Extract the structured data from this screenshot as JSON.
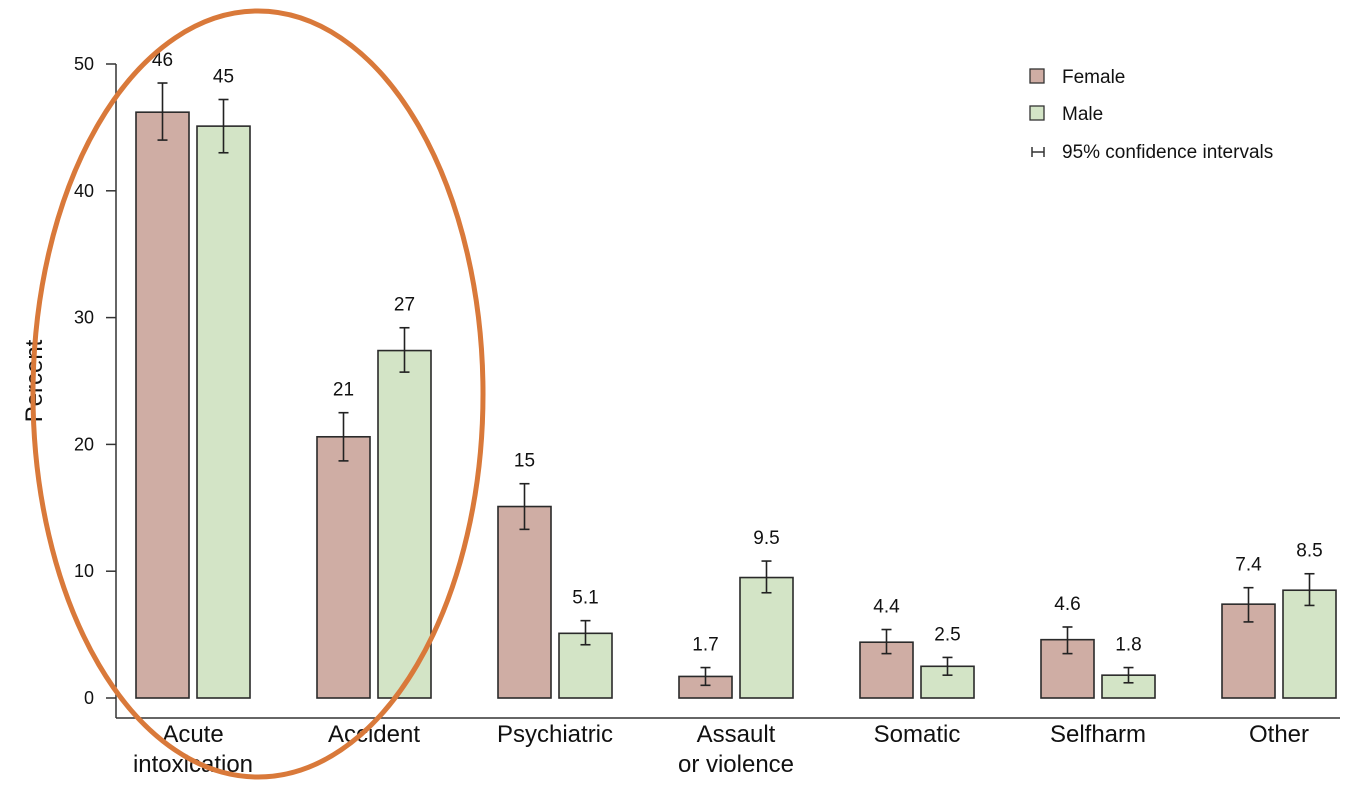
{
  "chart_data": {
    "type": "bar",
    "ylabel": "Percent",
    "xlabel": "",
    "ylim": [
      0,
      50
    ],
    "yticks": [
      0,
      10,
      20,
      30,
      40,
      50
    ],
    "grid": false,
    "legend_position": "top-right",
    "categories": [
      [
        "Acute",
        "intoxication"
      ],
      [
        "Accident"
      ],
      [
        "Psychiatric"
      ],
      [
        "Assault",
        "or violence"
      ],
      [
        "Somatic"
      ],
      [
        "Selfharm"
      ],
      [
        "Other"
      ]
    ],
    "series": [
      {
        "name": "Female",
        "color": "#cfada4",
        "values": [
          46.2,
          20.6,
          15.1,
          1.7,
          4.4,
          4.6,
          7.4
        ],
        "ci_low": [
          44.0,
          18.7,
          13.3,
          1.0,
          3.5,
          3.5,
          6.0
        ],
        "ci_high": [
          48.5,
          22.5,
          16.9,
          2.4,
          5.4,
          5.6,
          8.7
        ],
        "labels": [
          "46",
          "21",
          "15",
          "1.7",
          "4.4",
          "4.6",
          "7.4"
        ]
      },
      {
        "name": "Male",
        "color": "#d3e4c6",
        "values": [
          45.1,
          27.4,
          5.1,
          9.5,
          2.5,
          1.8,
          8.5
        ],
        "ci_low": [
          43.0,
          25.7,
          4.2,
          8.3,
          1.8,
          1.2,
          7.3
        ],
        "ci_high": [
          47.2,
          29.2,
          6.1,
          10.8,
          3.2,
          2.4,
          9.8
        ],
        "labels": [
          "45",
          "27",
          "5.1",
          "9.5",
          "2.5",
          "1.8",
          "8.5"
        ]
      }
    ],
    "legend": {
      "items": [
        "Female",
        "Male"
      ],
      "ci_label": "95% confidence intervals"
    },
    "annotation": {
      "shape": "ellipse",
      "color": "#d9793a",
      "highlights_categories": [
        "Acute intoxication",
        "Accident"
      ]
    }
  }
}
